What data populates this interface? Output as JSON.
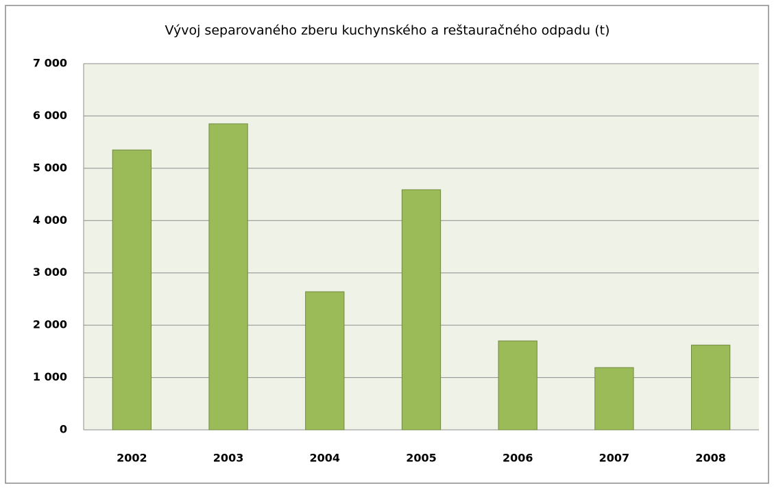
{
  "chart_data": {
    "type": "bar",
    "title": "Vývoj separovaného zberu kuchynského a reštauračného odpadu (t)",
    "categories": [
      "2002",
      "2003",
      "2004",
      "2005",
      "2006",
      "2007",
      "2008"
    ],
    "values": [
      5350,
      5850,
      2640,
      4590,
      1700,
      1190,
      1620
    ],
    "color": "#9bbb59",
    "ylim": [
      0,
      7000
    ],
    "yticks": [
      0,
      {
        "value": 1000,
        "label": "1 000"
      },
      {
        "value": 2000,
        "label": "2 000"
      },
      {
        "value": 3000,
        "label": "3 000"
      },
      {
        "value": 4000,
        "label": "4 000"
      },
      {
        "value": 5000,
        "label": "5 000"
      },
      {
        "value": 6000,
        "label": "6 000"
      },
      {
        "value": 7000,
        "label": "7 000"
      }
    ],
    "grid": true
  }
}
